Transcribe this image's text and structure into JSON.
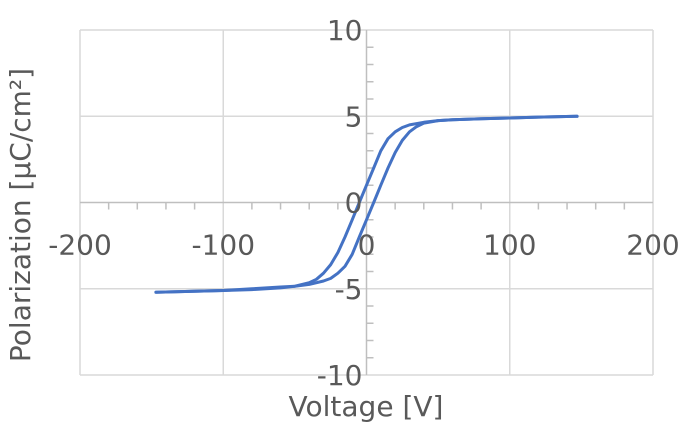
{
  "chart_data": {
    "type": "scatter",
    "xlabel": "Voltage [V]",
    "ylabel": "Polarization [μC/cm²]",
    "xlim": [
      -200,
      200
    ],
    "ylim": [
      -10,
      10
    ],
    "x_ticks": [
      "-200",
      "-100",
      "0",
      "100",
      "200"
    ],
    "y_ticks": [
      "10",
      "5",
      "0",
      "-5",
      "-10"
    ],
    "grid": true,
    "line_color": "#4472C4",
    "grid_color": "#D9D9D9",
    "axis_color": "#BFBFBF",
    "series": [
      {
        "x": [
          -147,
          -120,
          -100,
          -80,
          -60,
          -50,
          -40,
          -35,
          -30,
          -25,
          -20,
          -15,
          -10,
          -5,
          0,
          5,
          10,
          15,
          20,
          25,
          30,
          40,
          50,
          60,
          80,
          100,
          120,
          147
        ],
        "y": [
          -5.2,
          -5.15,
          -5.1,
          -5.05,
          -4.95,
          -4.85,
          -4.65,
          -4.45,
          -4.1,
          -3.6,
          -2.9,
          -2.0,
          -1.0,
          0.0,
          1.0,
          2.0,
          3.0,
          3.7,
          4.1,
          4.35,
          4.5,
          4.65,
          4.75,
          4.8,
          4.85,
          4.9,
          4.95,
          5.0
        ]
      },
      {
        "x": [
          147,
          120,
          100,
          80,
          60,
          50,
          40,
          35,
          30,
          25,
          20,
          15,
          10,
          5,
          0,
          -5,
          -10,
          -15,
          -20,
          -25,
          -30,
          -40,
          -50,
          -60,
          -80,
          -100,
          -120,
          -147
        ],
        "y": [
          5.0,
          4.95,
          4.9,
          4.85,
          4.8,
          4.75,
          4.6,
          4.4,
          4.1,
          3.6,
          2.9,
          2.0,
          1.0,
          0.0,
          -1.0,
          -2.0,
          -3.0,
          -3.7,
          -4.1,
          -4.4,
          -4.55,
          -4.75,
          -4.85,
          -4.9,
          -5.0,
          -5.1,
          -5.15,
          -5.2
        ]
      }
    ]
  }
}
